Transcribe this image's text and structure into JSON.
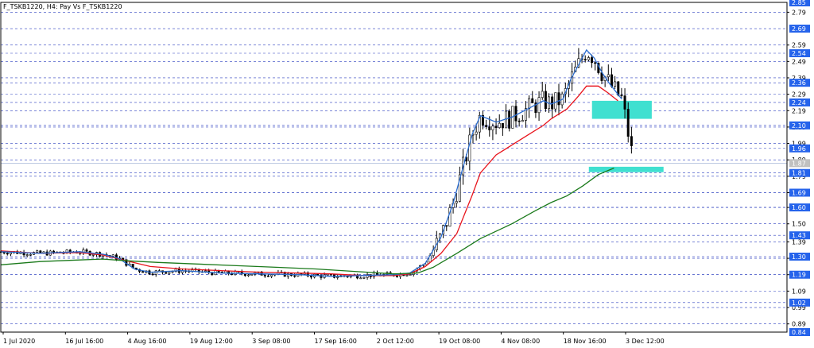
{
  "chart_data": {
    "type": "candlestick",
    "title": "F_TSKB1220, H4:  Pay Vs F_TSKB1220",
    "grid": true,
    "ylim": [
      0.84,
      2.85
    ],
    "x_ticks": [
      "1 Jul 2020",
      "16 Jul 16:00",
      "4 Aug 16:00",
      "19 Aug 12:00",
      "3 Sep 08:00",
      "17 Sep 16:00",
      "2 Oct 12:00",
      "19 Oct 08:00",
      "4 Nov 08:00",
      "18 Nov 16:00",
      "3 Dec 12:00"
    ],
    "y_ticks": [
      "2.79",
      "2.59",
      "2.49",
      "2.39",
      "2.29",
      "2.19",
      "2.09",
      "1.99",
      "1.89",
      "1.79",
      "1.69",
      "1.60",
      "1.50",
      "1.39",
      "1.29",
      "1.19",
      "1.09",
      "0.99",
      "0.89"
    ],
    "price_tags": [
      {
        "label": "2.85",
        "value": 2.85
      },
      {
        "label": "2.69",
        "value": 2.69
      },
      {
        "label": "2.54",
        "value": 2.54
      },
      {
        "label": "2.36",
        "value": 2.36
      },
      {
        "label": "2.24",
        "value": 2.24
      },
      {
        "label": "2.10",
        "value": 2.1
      },
      {
        "label": "1.96",
        "value": 1.96
      },
      {
        "label": "1.81",
        "value": 1.81
      },
      {
        "label": "1.69",
        "value": 1.69
      },
      {
        "label": "1.60",
        "value": 1.6
      },
      {
        "label": "1.43",
        "value": 1.43
      },
      {
        "label": "1.30",
        "value": 1.3
      },
      {
        "label": "1.19",
        "value": 1.19
      },
      {
        "label": "1.02",
        "value": 1.02
      },
      {
        "label": "0.84",
        "value": 0.84
      }
    ],
    "current_price": {
      "label": "1.87",
      "value": 1.87
    },
    "zones": [
      {
        "x_from": 0.752,
        "x_to": 0.828,
        "y_from": 2.14,
        "y_to": 2.25
      },
      {
        "x_from": 0.748,
        "x_to": 0.843,
        "y_from": 1.815,
        "y_to": 1.848
      }
    ],
    "series": [
      {
        "color": "#e8141c",
        "points": [
          [
            0,
            1.335
          ],
          [
            0.05,
            1.32
          ],
          [
            0.1,
            1.325
          ],
          [
            0.13,
            1.31
          ],
          [
            0.16,
            1.275
          ],
          [
            0.19,
            1.24
          ],
          [
            0.23,
            1.225
          ],
          [
            0.28,
            1.215
          ],
          [
            0.33,
            1.205
          ],
          [
            0.38,
            1.2
          ],
          [
            0.42,
            1.195
          ],
          [
            0.46,
            1.185
          ],
          [
            0.5,
            1.185
          ],
          [
            0.52,
            1.195
          ],
          [
            0.54,
            1.24
          ],
          [
            0.56,
            1.32
          ],
          [
            0.58,
            1.44
          ],
          [
            0.6,
            1.68
          ],
          [
            0.61,
            1.81
          ],
          [
            0.63,
            1.92
          ],
          [
            0.65,
            1.98
          ],
          [
            0.67,
            2.04
          ],
          [
            0.69,
            2.1
          ],
          [
            0.7,
            2.14
          ],
          [
            0.72,
            2.2
          ],
          [
            0.735,
            2.28
          ],
          [
            0.745,
            2.34
          ],
          [
            0.76,
            2.34
          ],
          [
            0.772,
            2.3
          ],
          [
            0.785,
            2.25
          ]
        ]
      },
      {
        "color": "#2a6ccf",
        "points": [
          [
            0,
            1.33
          ],
          [
            0.05,
            1.32
          ],
          [
            0.1,
            1.33
          ],
          [
            0.13,
            1.315
          ],
          [
            0.15,
            1.29
          ],
          [
            0.17,
            1.225
          ],
          [
            0.19,
            1.205
          ],
          [
            0.23,
            1.215
          ],
          [
            0.28,
            1.2
          ],
          [
            0.33,
            1.195
          ],
          [
            0.38,
            1.19
          ],
          [
            0.42,
            1.18
          ],
          [
            0.46,
            1.185
          ],
          [
            0.5,
            1.19
          ],
          [
            0.52,
            1.2
          ],
          [
            0.54,
            1.26
          ],
          [
            0.56,
            1.42
          ],
          [
            0.575,
            1.62
          ],
          [
            0.59,
            1.88
          ],
          [
            0.6,
            2.05
          ],
          [
            0.61,
            2.16
          ],
          [
            0.63,
            2.12
          ],
          [
            0.65,
            2.15
          ],
          [
            0.67,
            2.2
          ],
          [
            0.69,
            2.25
          ],
          [
            0.7,
            2.23
          ],
          [
            0.715,
            2.26
          ],
          [
            0.725,
            2.38
          ],
          [
            0.735,
            2.47
          ],
          [
            0.745,
            2.56
          ],
          [
            0.755,
            2.51
          ],
          [
            0.765,
            2.42
          ],
          [
            0.775,
            2.35
          ],
          [
            0.79,
            2.26
          ]
        ]
      },
      {
        "color": "#1b7a1b",
        "points": [
          [
            0,
            1.25
          ],
          [
            0.05,
            1.27
          ],
          [
            0.1,
            1.28
          ],
          [
            0.13,
            1.285
          ],
          [
            0.16,
            1.275
          ],
          [
            0.2,
            1.265
          ],
          [
            0.25,
            1.255
          ],
          [
            0.3,
            1.245
          ],
          [
            0.35,
            1.235
          ],
          [
            0.4,
            1.225
          ],
          [
            0.45,
            1.21
          ],
          [
            0.5,
            1.195
          ],
          [
            0.53,
            1.2
          ],
          [
            0.55,
            1.235
          ],
          [
            0.58,
            1.32
          ],
          [
            0.61,
            1.41
          ],
          [
            0.65,
            1.5
          ],
          [
            0.68,
            1.58
          ],
          [
            0.7,
            1.63
          ],
          [
            0.72,
            1.67
          ],
          [
            0.74,
            1.73
          ],
          [
            0.76,
            1.8
          ],
          [
            0.78,
            1.84
          ]
        ]
      }
    ]
  }
}
